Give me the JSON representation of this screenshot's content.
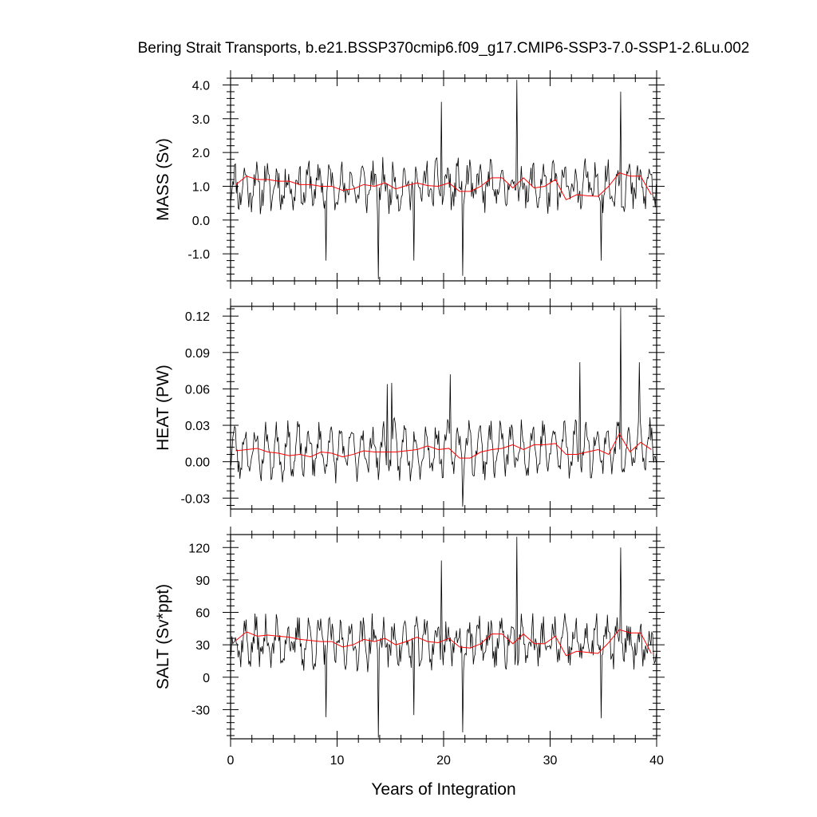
{
  "figure": {
    "title": "Bering Strait Transports, b.e21.BSSP370cmip6.f09_g17.CMIP6-SSP3-7.0-SSP1-2.6Lu.002",
    "xlabel": "Years of Integration"
  },
  "colors": {
    "monthly": "#000000",
    "annual": "#ff0000",
    "frame": "#000000"
  },
  "chart_data": [
    {
      "type": "line",
      "ylabel": "MASS (Sv)",
      "xlim": [
        0,
        40
      ],
      "ylim": [
        -1.8,
        4.2
      ],
      "yticks": [
        "4.0",
        "3.0",
        "2.0",
        "1.0",
        "0.0",
        "-1.0"
      ],
      "ytick_values": [
        4.0,
        3.0,
        2.0,
        1.0,
        0.0,
        -1.0
      ],
      "xticks": [
        "0",
        "10",
        "20",
        "30",
        "40"
      ],
      "xtick_values": [
        0,
        10,
        20,
        30,
        40
      ],
      "series": [
        {
          "role": "monthly",
          "mean": 1.0,
          "amp": 0.45,
          "noise": 0.45,
          "trend": 0.0,
          "seed": 11,
          "spikes": [
            [
              8.92,
              -1.2
            ],
            [
              13.9,
              -1.75
            ],
            [
              19.75,
              3.5
            ],
            [
              21.75,
              -1.65
            ],
            [
              26.9,
              4.15
            ],
            [
              36.6,
              3.8
            ],
            [
              17.2,
              -1.2
            ],
            [
              34.8,
              -1.2
            ]
          ]
        },
        {
          "role": "annual",
          "x": [
            0.5,
            1.5,
            2.5,
            3.5,
            4.5,
            5.5,
            6.5,
            7.5,
            8.5,
            9.5,
            10.5,
            11.5,
            12.5,
            13.5,
            14.5,
            15.5,
            16.5,
            17.5,
            18.5,
            19.5,
            20.5,
            21.5,
            22.5,
            23.5,
            24.5,
            25.5,
            26.5,
            27.5,
            28.5,
            29.5,
            30.5,
            31.5,
            32.5,
            33.5,
            34.5,
            35.5,
            36.5,
            37.5,
            38.5,
            39.5
          ],
          "y": [
            1.05,
            1.3,
            1.2,
            1.2,
            1.15,
            1.15,
            1.05,
            1.05,
            1.0,
            1.0,
            0.88,
            0.92,
            1.05,
            1.0,
            1.1,
            0.92,
            1.02,
            1.1,
            1.02,
            1.0,
            1.1,
            0.85,
            0.85,
            1.0,
            1.25,
            1.25,
            0.95,
            1.25,
            0.95,
            1.0,
            1.2,
            0.6,
            0.75,
            0.72,
            0.7,
            1.0,
            1.4,
            1.3,
            1.3,
            0.75
          ]
        }
      ]
    },
    {
      "type": "line",
      "ylabel": "HEAT (PW)",
      "xlim": [
        0,
        40
      ],
      "ylim": [
        -0.039,
        0.128
      ],
      "yticks": [
        "0.12",
        "0.09",
        "0.06",
        "0.03",
        "0.00",
        "-0.03"
      ],
      "ytick_values": [
        0.12,
        0.09,
        0.06,
        0.03,
        0.0,
        -0.03
      ],
      "xticks": [
        "0",
        "10",
        "20",
        "30",
        "40"
      ],
      "xtick_values": [
        0,
        10,
        20,
        30,
        40
      ],
      "series": [
        {
          "role": "monthly",
          "mean": 0.008,
          "amp": 0.017,
          "noise": 0.01,
          "trend": 0.0001,
          "seed": 23,
          "spikes": [
            [
              21.75,
              -0.037
            ],
            [
              36.6,
              0.127
            ],
            [
              32.8,
              0.082
            ],
            [
              38.4,
              0.082
            ],
            [
              15.1,
              0.065
            ],
            [
              20.6,
              0.072
            ],
            [
              14.7,
              0.064
            ],
            [
              7.9,
              -0.012
            ]
          ]
        },
        {
          "role": "annual",
          "x": [
            0.5,
            1.5,
            2.5,
            3.5,
            4.5,
            5.5,
            6.5,
            7.5,
            8.5,
            9.5,
            10.5,
            11.5,
            12.5,
            13.5,
            14.5,
            15.5,
            16.5,
            17.5,
            18.5,
            19.5,
            20.5,
            21.5,
            22.5,
            23.5,
            24.5,
            25.5,
            26.5,
            27.5,
            28.5,
            29.5,
            30.5,
            31.5,
            32.5,
            33.5,
            34.5,
            35.5,
            36.5,
            37.5,
            38.5,
            39.5
          ],
          "y": [
            0.009,
            0.01,
            0.011,
            0.008,
            0.007,
            0.005,
            0.006,
            0.004,
            0.008,
            0.007,
            0.004,
            0.006,
            0.009,
            0.008,
            0.008,
            0.008,
            0.009,
            0.01,
            0.013,
            0.01,
            0.011,
            0.003,
            0.003,
            0.008,
            0.01,
            0.011,
            0.014,
            0.01,
            0.014,
            0.014,
            0.015,
            0.006,
            0.006,
            0.008,
            0.01,
            0.006,
            0.023,
            0.008,
            0.016,
            0.01
          ]
        }
      ]
    },
    {
      "type": "line",
      "ylabel": "SALT (Sv*ppt)",
      "xlim": [
        0,
        40
      ],
      "ylim": [
        -57,
        132
      ],
      "yticks": [
        "120",
        "90",
        "60",
        "30",
        "0",
        "-30"
      ],
      "ytick_values": [
        120,
        90,
        60,
        30,
        0,
        -30
      ],
      "xticks": [
        "0",
        "10",
        "20",
        "30",
        "40"
      ],
      "xtick_values": [
        0,
        10,
        20,
        30,
        40
      ],
      "series": [
        {
          "role": "monthly",
          "mean": 32,
          "amp": 14,
          "noise": 14,
          "trend": 0.0,
          "seed": 37,
          "spikes": [
            [
              8.92,
              -37
            ],
            [
              13.9,
              -56
            ],
            [
              19.75,
              108
            ],
            [
              21.75,
              -51
            ],
            [
              26.9,
              130
            ],
            [
              36.6,
              120
            ],
            [
              17.2,
              -35
            ],
            [
              34.8,
              -38
            ]
          ]
        },
        {
          "role": "annual",
          "x": [
            0.5,
            1.5,
            2.5,
            3.5,
            4.5,
            5.5,
            6.5,
            7.5,
            8.5,
            9.5,
            10.5,
            11.5,
            12.5,
            13.5,
            14.5,
            15.5,
            16.5,
            17.5,
            18.5,
            19.5,
            20.5,
            21.5,
            22.5,
            23.5,
            24.5,
            25.5,
            26.5,
            27.5,
            28.5,
            29.5,
            30.5,
            31.5,
            32.5,
            33.5,
            34.5,
            35.5,
            36.5,
            37.5,
            38.5,
            39.5
          ],
          "y": [
            34,
            42,
            38,
            39,
            38,
            37,
            35,
            34,
            33,
            33,
            28,
            30,
            35,
            33,
            36,
            30,
            33,
            37,
            33,
            32,
            36,
            28,
            27,
            31,
            40,
            40,
            31,
            40,
            31,
            31,
            38,
            20,
            24,
            23,
            22,
            32,
            44,
            41,
            41,
            22
          ]
        }
      ]
    }
  ]
}
